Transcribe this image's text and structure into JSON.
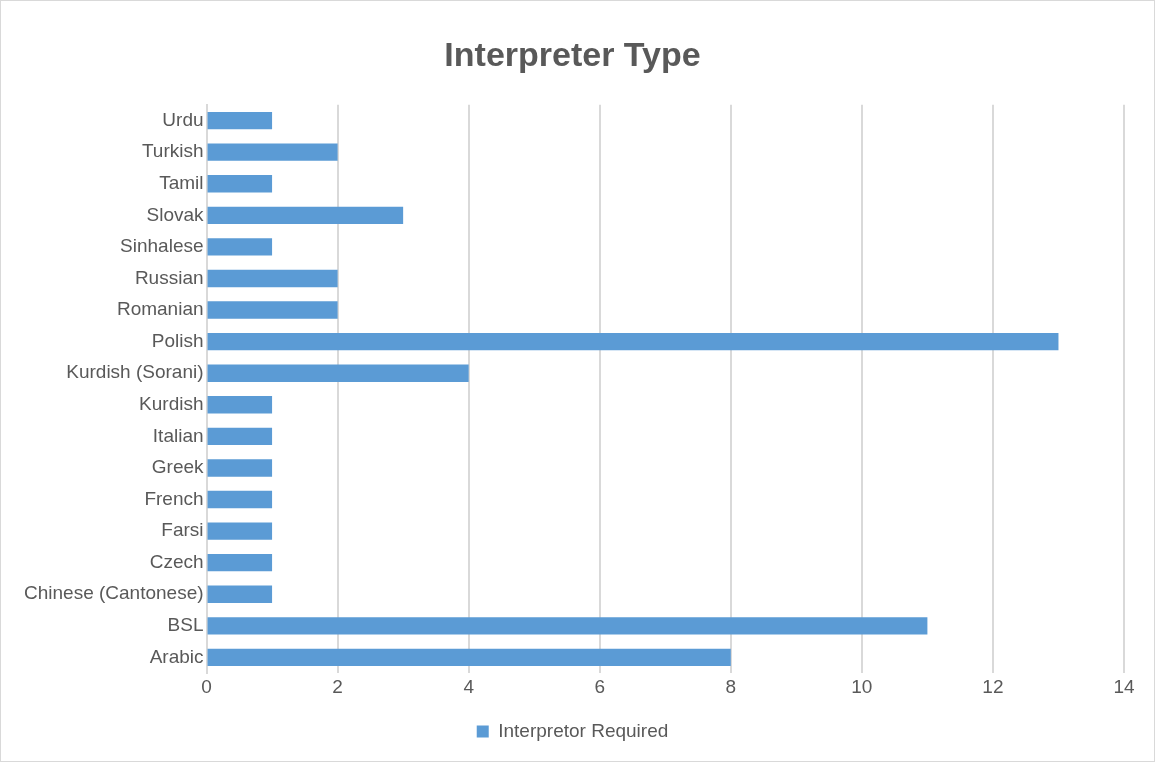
{
  "chart_data": {
    "type": "bar",
    "orientation": "horizontal",
    "title": "Interpreter Type",
    "categories": [
      "Urdu",
      "Turkish",
      "Tamil",
      "Slovak",
      "Sinhalese",
      "Russian",
      "Romanian",
      "Polish",
      "Kurdish (Sorani)",
      "Kurdish",
      "Italian",
      "Greek",
      "French",
      "Farsi",
      "Czech",
      "Chinese (Cantonese)",
      "BSL",
      "Arabic"
    ],
    "series": [
      {
        "name": "Interpretor Required",
        "color": "#5b9bd5",
        "values": [
          1,
          2,
          1,
          3,
          1,
          2,
          2,
          13,
          4,
          1,
          1,
          1,
          1,
          1,
          1,
          1,
          11,
          8
        ]
      }
    ],
    "xlim": [
      0,
      14
    ],
    "xticks": [
      0,
      2,
      4,
      6,
      8,
      10,
      12,
      14
    ],
    "grid": "x",
    "legend": "bottom"
  }
}
